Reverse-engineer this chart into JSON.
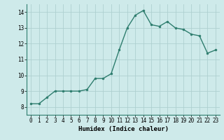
{
  "x": [
    0,
    1,
    2,
    3,
    4,
    5,
    6,
    7,
    8,
    9,
    10,
    11,
    12,
    13,
    14,
    15,
    16,
    17,
    18,
    19,
    20,
    21,
    22,
    23
  ],
  "y": [
    8.2,
    8.2,
    8.6,
    9.0,
    9.0,
    9.0,
    9.0,
    9.1,
    9.8,
    9.8,
    10.1,
    11.6,
    13.0,
    13.8,
    14.1,
    13.2,
    13.1,
    13.4,
    13.0,
    12.9,
    12.6,
    12.5,
    11.4,
    11.6
  ],
  "line_color": "#2e7d6e",
  "marker": "o",
  "marker_size": 2.0,
  "linewidth": 1.0,
  "xlabel": "Humidex (Indice chaleur)",
  "xlim": [
    -0.5,
    23.5
  ],
  "ylim": [
    7.5,
    14.5
  ],
  "yticks": [
    8,
    9,
    10,
    11,
    12,
    13,
    14
  ],
  "xticks": [
    0,
    1,
    2,
    3,
    4,
    5,
    6,
    7,
    8,
    9,
    10,
    11,
    12,
    13,
    14,
    15,
    16,
    17,
    18,
    19,
    20,
    21,
    22,
    23
  ],
  "background_color": "#ceeaea",
  "grid_color": "#aed0d0",
  "xlabel_fontsize": 6.5,
  "tick_fontsize": 5.5
}
